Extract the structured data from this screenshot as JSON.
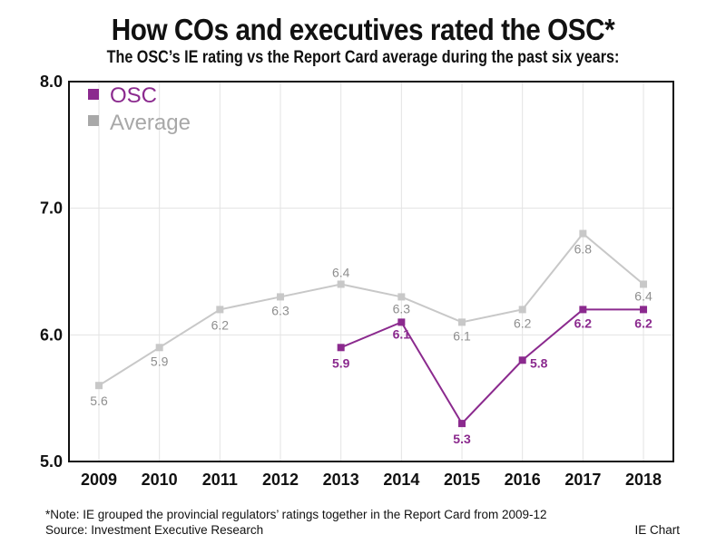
{
  "header": {
    "title": "How COs and executives rated the OSC*",
    "subtitle": "The OSC’s IE rating vs the Report Card average during the past six years:"
  },
  "footer": {
    "note": "*Note: IE grouped the provincial regulators’ ratings together in the Report Card from 2009-12",
    "source": "Source: Investment Executive Research",
    "credit": "IE Chart"
  },
  "colors": {
    "osc": "#8b2a8e",
    "average": "#c8c8c8",
    "average_label": "#8e8e8e",
    "grid": "#e3e3e3",
    "axis": "#111111"
  },
  "chart_data": {
    "type": "line",
    "title": "How COs and executives rated the OSC*",
    "subtitle": "The OSC’s IE rating vs the Report Card average during the past six years:",
    "xlabel": "",
    "ylabel": "",
    "categories": [
      "2009",
      "2010",
      "2011",
      "2012",
      "2013",
      "2014",
      "2015",
      "2016",
      "2017",
      "2018"
    ],
    "ylim": [
      5.0,
      8.0
    ],
    "yticks": [
      5.0,
      6.0,
      7.0,
      8.0
    ],
    "ytick_labels": [
      "5.0",
      "6.0",
      "7.0",
      "8.0"
    ],
    "grid": true,
    "legend": "top-left",
    "series": [
      {
        "name": "OSC",
        "values": [
          null,
          null,
          null,
          null,
          5.9,
          6.1,
          5.3,
          5.8,
          6.2,
          6.2
        ],
        "labels": [
          null,
          null,
          null,
          null,
          "5.9",
          "6.1",
          "5.3",
          "5.8",
          "6.2",
          "6.2"
        ]
      },
      {
        "name": "Average",
        "values": [
          5.6,
          5.9,
          6.2,
          6.3,
          6.4,
          6.3,
          6.1,
          6.2,
          6.8,
          6.4
        ],
        "labels": [
          "5.6",
          "5.9",
          "6.2",
          "6.3",
          "6.4",
          "6.3",
          "6.1",
          "6.2",
          "6.8",
          "6.4"
        ]
      }
    ]
  }
}
